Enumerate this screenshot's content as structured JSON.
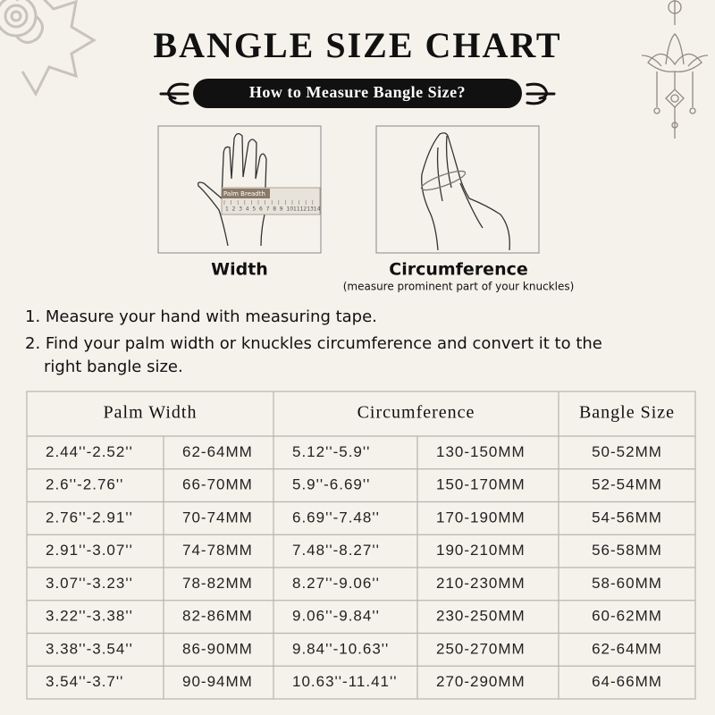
{
  "header": {
    "title": "BANGLE SIZE CHART",
    "subtitle": "How to Measure Bangle Size?"
  },
  "figures": [
    {
      "label": "Width",
      "tape_label": "Palm Breadth",
      "ruler": [
        "1",
        "2",
        "3",
        "4",
        "5",
        "6",
        "7",
        "8",
        "9",
        "10",
        "11",
        "12",
        "13",
        "14"
      ]
    },
    {
      "label": "Circumference",
      "note": "(measure prominent part of your knuckles)"
    }
  ],
  "instructions": [
    "1. Measure your hand with measuring tape.",
    "2. Find your palm width or knuckles circumference and convert it to the",
    "right bangle size."
  ],
  "table": {
    "headers": [
      "Palm Width",
      "Circumference",
      "Bangle Size"
    ],
    "rows": [
      [
        "2.44''-2.52''",
        "62-64MM",
        "5.12''-5.9''",
        "130-150MM",
        "50-52MM"
      ],
      [
        "2.6''-2.76''",
        "66-70MM",
        "5.9''-6.69''",
        "150-170MM",
        "52-54MM"
      ],
      [
        "2.76''-2.91''",
        "70-74MM",
        "6.69''-7.48''",
        "170-190MM",
        "54-56MM"
      ],
      [
        "2.91''-3.07''",
        "74-78MM",
        "7.48''-8.27''",
        "190-210MM",
        "56-58MM"
      ],
      [
        "3.07''-3.23''",
        "78-82MM",
        "8.27''-9.06''",
        "210-230MM",
        "58-60MM"
      ],
      [
        "3.22''-3.38''",
        "82-86MM",
        "9.06''-9.84''",
        "230-250MM",
        "60-62MM"
      ],
      [
        "3.38''-3.54''",
        "86-90MM",
        "9.84''-10.63''",
        "250-270MM",
        "62-64MM"
      ],
      [
        "3.54''-3.7''",
        "90-94MM",
        "10.63''-11.41''",
        "270-290MM",
        "64-66MM"
      ]
    ]
  }
}
